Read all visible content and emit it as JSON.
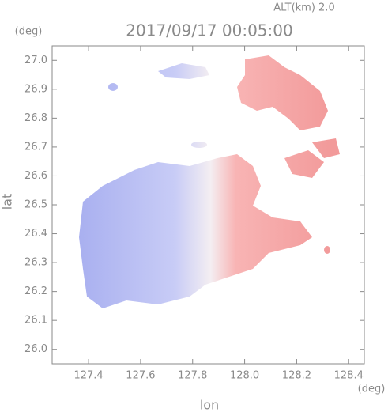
{
  "chart_data": {
    "type": "radar-field",
    "title": "2017/09/17 00:05:00",
    "subtitle": "ALT(km) 2.0",
    "x_label": "lon",
    "x_unit": "(deg)",
    "y_label": "lat",
    "y_unit": "(deg)",
    "xlim": [
      127.26,
      128.46
    ],
    "xticks": [
      127.4,
      127.6,
      127.8,
      {
        "value": 128.0,
        "label": "128.0"
      },
      128.2,
      128.4
    ],
    "ylim": [
      25.95,
      27.05
    ],
    "yticks": [
      {
        "value": 26.0,
        "label": "26.0"
      },
      26.1,
      26.2,
      26.3,
      26.4,
      26.5,
      26.6,
      26.7,
      26.8,
      26.9,
      {
        "value": 27.0,
        "label": "27.0"
      }
    ]
  }
}
